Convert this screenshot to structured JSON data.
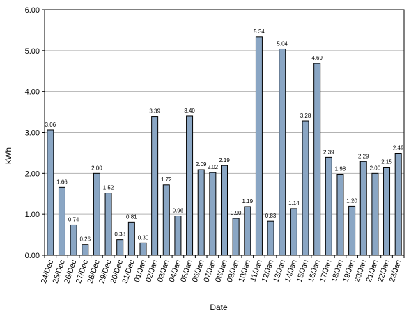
{
  "chart_data": {
    "type": "bar",
    "xlabel": "Date",
    "ylabel": "kWh",
    "ylim": [
      0,
      6
    ],
    "yticks": [
      "0.00",
      "1.00",
      "2.00",
      "3.00",
      "4.00",
      "5.00",
      "6.00"
    ],
    "grid": true,
    "bar_color": "#8aa6c4",
    "bar_edge_color": "#000000",
    "categories": [
      "24/Dec",
      "25/Dec",
      "26/Dec",
      "27/Dec",
      "28/Dec",
      "29/Dec",
      "30/Dec",
      "31/Dec",
      "01/Jan",
      "02/Jan",
      "03/Jan",
      "04/Jan",
      "05/Jan",
      "06/Jan",
      "07/Jan",
      "08/Jan",
      "09/Jan",
      "10/Jan",
      "11/Jan",
      "12/Jan",
      "13/Jan",
      "14/Jan",
      "15/Jan",
      "16/Jan",
      "17/Jan",
      "18/Jan",
      "19/Jan",
      "20/Jan",
      "21/Jan",
      "22/Jan",
      "23/Jan"
    ],
    "values": [
      3.06,
      1.66,
      0.74,
      0.26,
      2.0,
      1.52,
      0.38,
      0.81,
      0.3,
      3.39,
      1.72,
      0.96,
      3.4,
      2.09,
      2.02,
      2.19,
      0.9,
      1.19,
      5.34,
      0.83,
      5.04,
      1.14,
      3.28,
      4.69,
      2.39,
      1.98,
      1.2,
      2.29,
      2.0,
      2.15,
      2.49
    ],
    "data_labels": [
      "3.06",
      "1.66",
      "0.74",
      "0.26",
      "2.00",
      "1.52",
      "0.38",
      "0.81",
      "0.30",
      "3.39",
      "1.72",
      "0.96",
      "3.40",
      "2.09",
      "2.02",
      "2.19",
      "0.90",
      "1.19",
      "5.34",
      "0.83",
      "5.04",
      "1.14",
      "3.28",
      "4.69",
      "2.39",
      "1.98",
      "1.20",
      "2.29",
      "2.00",
      "2.15",
      "2.49"
    ]
  }
}
